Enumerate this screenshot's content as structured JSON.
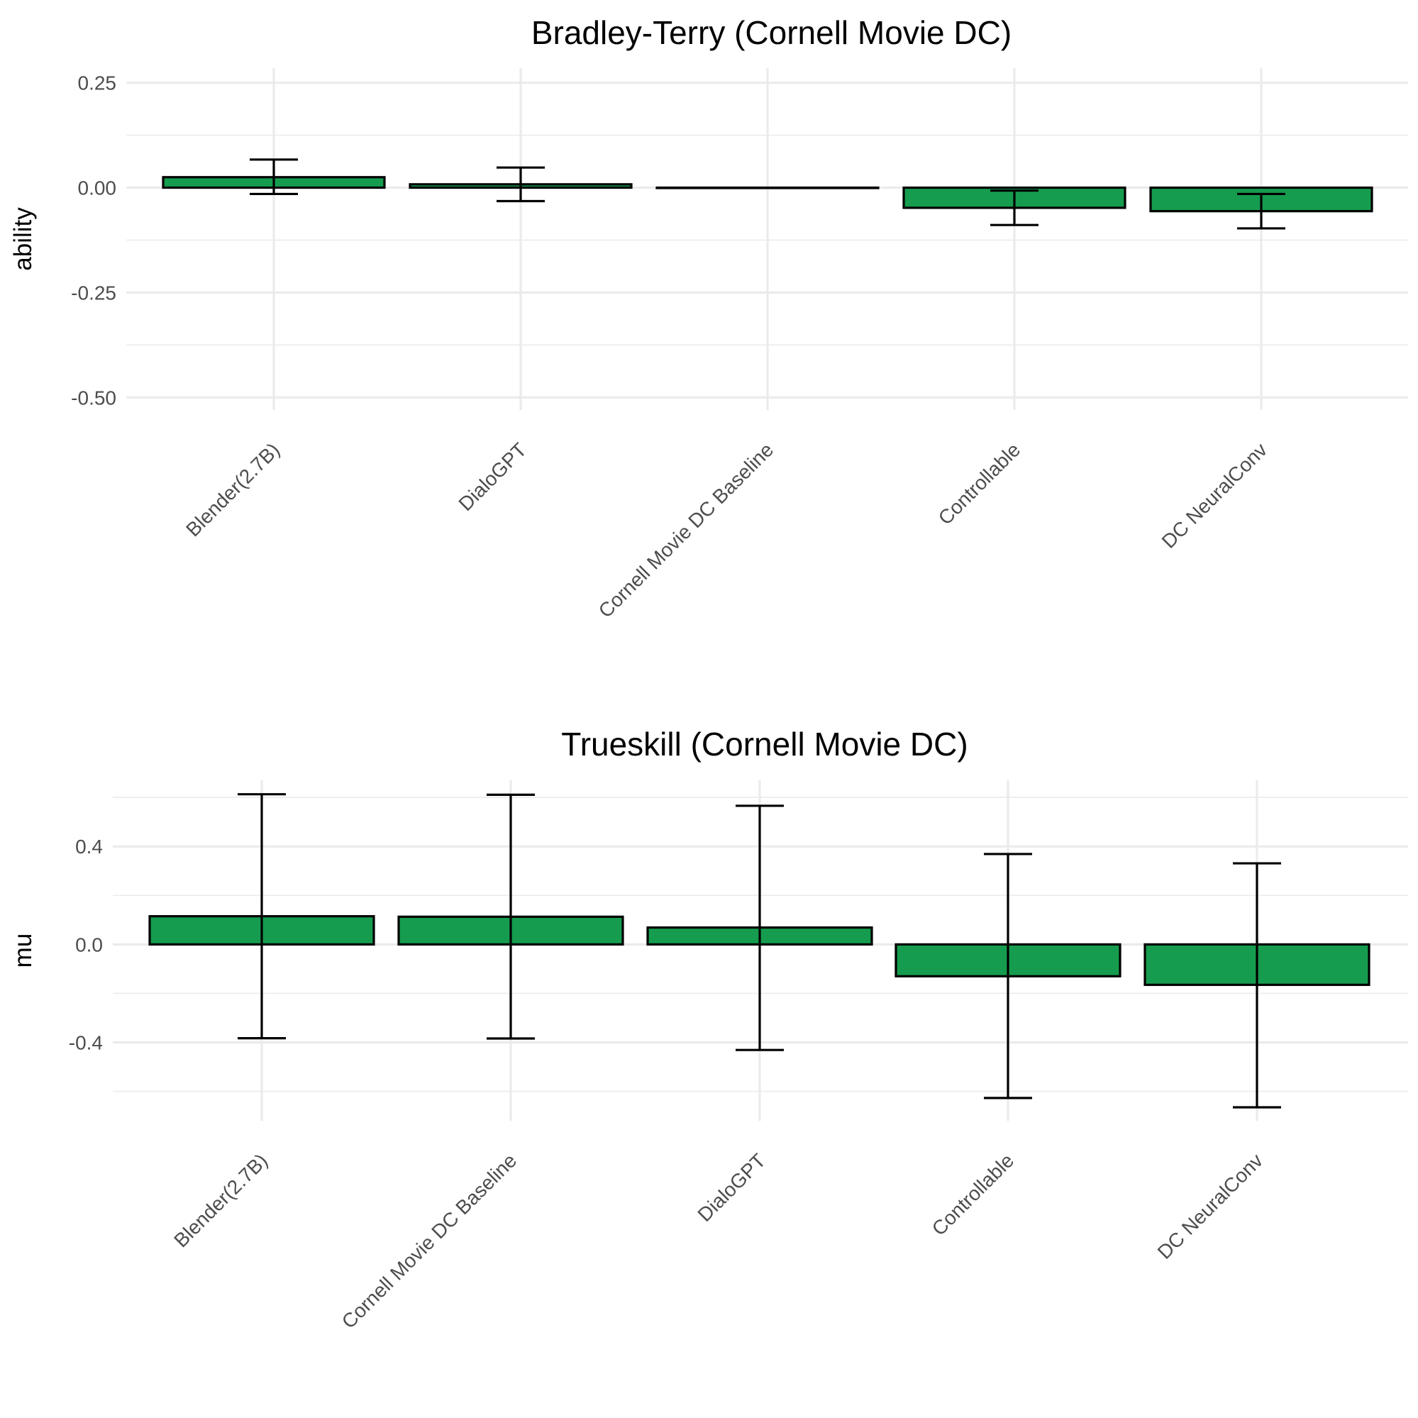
{
  "chart_data": [
    {
      "type": "bar",
      "title": "Bradley-Terry (Cornell Movie DC)",
      "xlabel": "",
      "ylabel": "ability",
      "ylim": [
        -0.53,
        0.285
      ],
      "yticks": [
        0.25,
        0.0,
        -0.25,
        -0.5
      ],
      "ytick_labels": [
        "0.25",
        "0.00",
        "-0.25",
        "-0.50"
      ],
      "grid": true,
      "bar_color": "#169c4e",
      "categories": [
        "Blender(2.7B)",
        "DialoGPT",
        "Cornell Movie DC Baseline",
        "Controllable",
        "DC NeuralConv"
      ],
      "values": [
        0.025,
        0.008,
        0.0,
        -0.048,
        -0.056
      ],
      "error_low": [
        -0.015,
        -0.032,
        0.0,
        -0.089,
        -0.097
      ],
      "error_high": [
        0.067,
        0.048,
        0.0,
        -0.007,
        -0.015
      ]
    },
    {
      "type": "bar",
      "title": "Trueskill (Cornell Movie DC)",
      "xlabel": "",
      "ylabel": "mu",
      "ylim": [
        -0.72,
        0.67
      ],
      "yticks": [
        0.4,
        0.0,
        -0.4
      ],
      "ytick_labels": [
        "0.4",
        "0.0",
        "-0.4"
      ],
      "grid": true,
      "bar_color": "#169c4e",
      "categories": [
        "Blender(2.7B)",
        "Cornell Movie DC Baseline",
        "DialoGPT",
        "Controllable",
        "DC NeuralConv"
      ],
      "values": [
        0.115,
        0.113,
        0.069,
        -0.13,
        -0.165
      ],
      "error_low": [
        -0.383,
        -0.384,
        -0.431,
        -0.627,
        -0.665
      ],
      "error_high": [
        0.613,
        0.611,
        0.566,
        0.369,
        0.331
      ]
    }
  ]
}
